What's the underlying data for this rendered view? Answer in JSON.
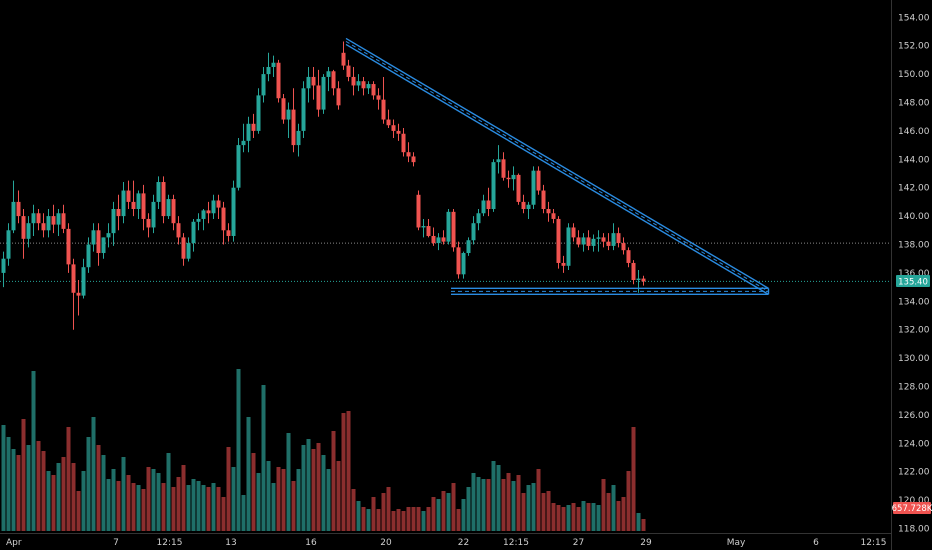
{
  "colors": {
    "background": "#000000",
    "up": "#26a69a",
    "down": "#ef5350",
    "volume_up": "#1f6f68",
    "volume_down": "#8b2e2e",
    "pattern": "#2a8be0",
    "axis_text": "#cfcfcf",
    "price_line": "#26a69a",
    "price_tag_bg": "#26a69a",
    "volume_tag_bg": "#ef5350",
    "resistance_line": "#888888"
  },
  "chart_data": {
    "type": "candlestick",
    "y_axis": {
      "min": 118,
      "max": 155,
      "tick_labels": [
        "154.00",
        "152.00",
        "150.00",
        "148.00",
        "146.00",
        "144.00",
        "142.00",
        "140.00",
        "138.00",
        "136.00",
        "134.00",
        "132.00",
        "130.00",
        "128.00",
        "126.00",
        "124.00",
        "122.00",
        "120.00",
        "118.00"
      ],
      "tick_values": [
        154,
        152,
        150,
        148,
        146,
        144,
        142,
        140,
        138,
        136,
        134,
        132,
        130,
        128,
        126,
        124,
        122,
        120,
        118
      ]
    },
    "x_axis": {
      "labels": [
        "Apr",
        "7",
        "12:15",
        "13",
        "16",
        "20",
        "22",
        "12:15",
        "27",
        "29",
        "May",
        "6",
        "12:15"
      ],
      "label_positions": [
        0.5,
        22.5,
        33.2,
        45.5,
        61.5,
        76.5,
        92,
        102.5,
        115,
        128.5,
        146.5,
        162.5,
        174
      ]
    },
    "last_price": 135.4,
    "last_price_label": "135.40",
    "last_volume_label": "657.728K",
    "horizontal_level": 138.1,
    "triangle_pattern": {
      "upper_start": {
        "i": 68.5,
        "price": 152.3
      },
      "apex": {
        "i": 153,
        "price": 134.7
      },
      "base_start": {
        "i": 89.5,
        "price": 134.7
      }
    },
    "candles": [
      [
        136,
        137.5,
        135,
        137
      ],
      [
        137,
        139.5,
        136.5,
        139
      ],
      [
        139,
        142.5,
        138.8,
        141
      ],
      [
        141,
        141.8,
        139.5,
        140
      ],
      [
        140,
        140.5,
        137,
        138.4
      ],
      [
        138.4,
        140,
        137.8,
        139.5
      ],
      [
        139.5,
        140.8,
        138.6,
        140.2
      ],
      [
        140.2,
        140.5,
        139,
        139.5
      ],
      [
        139.5,
        140.2,
        138.5,
        139
      ],
      [
        139,
        140.5,
        138.5,
        140
      ],
      [
        140,
        140.8,
        138.8,
        139.4
      ],
      [
        139.4,
        140.5,
        138.6,
        140.2
      ],
      [
        140.2,
        140.8,
        138.8,
        139.1
      ],
      [
        139.1,
        139.5,
        136,
        136.6
      ],
      [
        136.6,
        137,
        132,
        134.6
      ],
      [
        134.6,
        135.5,
        133,
        134.4
      ],
      [
        134.4,
        137,
        134.2,
        136.4
      ],
      [
        136.4,
        138.5,
        136,
        138
      ],
      [
        138,
        139.5,
        137.5,
        139
      ],
      [
        139,
        139.5,
        136.5,
        137.4
      ],
      [
        137.4,
        138.5,
        137,
        138.5
      ],
      [
        138.5,
        139.5,
        137.8,
        138.8
      ],
      [
        138.8,
        141,
        137.9,
        140.5
      ],
      [
        140.5,
        141.5,
        139,
        140
      ],
      [
        140,
        142.4,
        139.5,
        141.8
      ],
      [
        141.8,
        142.5,
        140.5,
        141
      ],
      [
        141,
        142.5,
        140,
        140.5
      ],
      [
        140.5,
        141.8,
        139.8,
        141.6
      ],
      [
        141.6,
        142.2,
        139,
        139.8
      ],
      [
        139.8,
        140.2,
        138.5,
        139.2
      ],
      [
        139.2,
        141.5,
        138.8,
        141
      ],
      [
        141,
        142.8,
        140.5,
        142.4
      ],
      [
        142.4,
        142.8,
        139.5,
        140
      ],
      [
        140,
        141.5,
        139.8,
        141.2
      ],
      [
        141.2,
        141.5,
        139,
        139.5
      ],
      [
        139.5,
        140,
        138,
        138.5
      ],
      [
        138.5,
        138.8,
        136.5,
        137
      ],
      [
        137,
        138.5,
        136.8,
        138.1
      ],
      [
        138.1,
        139.8,
        137.5,
        139.6
      ],
      [
        139.6,
        140.2,
        139,
        139.8
      ],
      [
        139.8,
        140.5,
        139,
        140.4
      ],
      [
        140.4,
        141,
        139.5,
        140.2
      ],
      [
        140.2,
        141.5,
        139.8,
        141.1
      ],
      [
        141.1,
        141.5,
        139.8,
        140.6
      ],
      [
        140.6,
        141,
        138,
        139
      ],
      [
        139,
        139.5,
        138.2,
        138.6
      ],
      [
        138.6,
        142.5,
        138.2,
        142
      ],
      [
        142,
        145.5,
        141.8,
        145
      ],
      [
        145,
        146.5,
        144.5,
        145.3
      ],
      [
        145.3,
        147,
        144.5,
        146.5
      ],
      [
        146.5,
        147.2,
        145.5,
        146
      ],
      [
        146,
        149,
        145.8,
        148.5
      ],
      [
        148.5,
        150.5,
        148,
        150
      ],
      [
        150,
        151.5,
        149.5,
        150.5
      ],
      [
        150.5,
        151.3,
        149.8,
        150.8
      ],
      [
        150.8,
        151,
        148,
        148.3
      ],
      [
        148.3,
        148.6,
        146.5,
        146.8
      ],
      [
        146.8,
        148,
        145.5,
        147.5
      ],
      [
        147.5,
        149,
        144.5,
        145
      ],
      [
        145,
        146.5,
        144.2,
        146
      ],
      [
        146,
        149.5,
        145.5,
        149
      ],
      [
        149,
        150.5,
        148,
        149.8
      ],
      [
        149.8,
        150.5,
        148.2,
        149.2
      ],
      [
        149.2,
        150.3,
        147,
        147.5
      ],
      [
        147.5,
        150,
        147.2,
        149.8
      ],
      [
        149.8,
        150.5,
        148.8,
        150.2
      ],
      [
        150.2,
        150.3,
        148.5,
        149
      ],
      [
        149,
        149.5,
        147.5,
        147.8
      ],
      [
        151.5,
        152.3,
        150.3,
        150.6
      ],
      [
        150.6,
        151,
        149.5,
        149.8
      ],
      [
        149.8,
        150.5,
        148.5,
        149.2
      ],
      [
        149.2,
        150,
        148.8,
        149.5
      ],
      [
        149.5,
        149.8,
        148.5,
        149
      ],
      [
        149,
        149.5,
        148.6,
        149.3
      ],
      [
        149.3,
        149.5,
        148.2,
        148.5
      ],
      [
        148.5,
        149,
        147.5,
        148.2
      ],
      [
        148.2,
        149.8,
        146.5,
        146.8
      ],
      [
        146.8,
        147.5,
        146.2,
        146.4
      ],
      [
        146.4,
        146.8,
        145.5,
        146
      ],
      [
        146,
        146.5,
        145.3,
        145.8
      ],
      [
        145.8,
        146.2,
        144.2,
        144.5
      ],
      [
        144.5,
        145.2,
        143.8,
        144.2
      ],
      [
        144.2,
        144.5,
        143.5,
        143.8
      ],
      [
        141.5,
        141.8,
        139,
        139.2
      ],
      [
        139.2,
        139.8,
        138.5,
        139.3
      ],
      [
        139.3,
        139.8,
        138.5,
        138.6
      ],
      [
        138.6,
        139.2,
        137.9,
        138.1
      ],
      [
        138.1,
        138.8,
        137.6,
        138.5
      ],
      [
        138.5,
        139,
        138,
        138.2
      ],
      [
        138.2,
        140.5,
        138,
        140.3
      ],
      [
        140.3,
        140.5,
        137.5,
        137.8
      ],
      [
        137.8,
        138.2,
        135.6,
        135.9
      ],
      [
        135.9,
        137.5,
        135.6,
        137.4
      ],
      [
        137.4,
        138.5,
        137.2,
        138.3
      ],
      [
        138.3,
        140,
        138,
        139.5
      ],
      [
        139.5,
        140.5,
        139,
        140.2
      ],
      [
        140.2,
        141.5,
        140,
        141.1
      ],
      [
        141.1,
        142,
        140,
        140.5
      ],
      [
        140.5,
        144,
        140.3,
        143.8
      ],
      [
        143.8,
        145,
        143,
        144
      ],
      [
        144,
        144.5,
        142.5,
        142.7
      ],
      [
        142.7,
        143.2,
        142,
        142.6
      ],
      [
        142.6,
        143.5,
        141.8,
        142.9
      ],
      [
        142.9,
        143,
        140.8,
        141
      ],
      [
        141,
        141.5,
        140.2,
        140.5
      ],
      [
        140.5,
        141,
        139.8,
        140.8
      ],
      [
        140.8,
        143.5,
        140.5,
        143.2
      ],
      [
        143.2,
        143.5,
        141.5,
        141.8
      ],
      [
        141.8,
        142.2,
        140.2,
        140.5
      ],
      [
        140.5,
        141,
        139.6,
        140.2
      ],
      [
        140.2,
        140.5,
        139.5,
        139.8
      ],
      [
        139.8,
        140,
        136.3,
        136.7
      ],
      [
        136.7,
        137.2,
        136,
        136.5
      ],
      [
        136.5,
        139.5,
        136.2,
        139.2
      ],
      [
        139.2,
        139.5,
        138.2,
        138.5
      ],
      [
        138.5,
        139,
        137.8,
        138
      ],
      [
        138,
        138.8,
        137.5,
        138.5
      ],
      [
        138.5,
        139,
        137.6,
        137.9
      ],
      [
        137.9,
        138.7,
        137.5,
        138.4
      ],
      [
        138.4,
        139,
        137.5,
        138.5
      ],
      [
        138.5,
        138.8,
        137.8,
        138.2
      ],
      [
        138.2,
        138.8,
        137.6,
        137.9
      ],
      [
        137.9,
        139.5,
        137.6,
        138.8
      ],
      [
        138.8,
        139.2,
        137.8,
        138.1
      ],
      [
        138.1,
        138.5,
        137.3,
        137.6
      ],
      [
        137.6,
        137.8,
        136.4,
        136.7
      ],
      [
        136.7,
        136.9,
        135.2,
        135.5
      ],
      [
        135.5,
        136.2,
        134.6,
        135.6
      ],
      [
        135.6,
        135.8,
        135.1,
        135.4
      ]
    ],
    "volumes": [
      0.53,
      0.47,
      0.41,
      0.38,
      0.56,
      0.43,
      0.8,
      0.45,
      0.4,
      0.3,
      0.28,
      0.34,
      0.37,
      0.52,
      0.34,
      0.2,
      0.3,
      0.47,
      0.57,
      0.43,
      0.38,
      0.26,
      0.31,
      0.25,
      0.37,
      0.28,
      0.24,
      0.23,
      0.21,
      0.32,
      0.31,
      0.29,
      0.24,
      0.39,
      0.22,
      0.27,
      0.33,
      0.23,
      0.26,
      0.25,
      0.23,
      0.22,
      0.24,
      0.22,
      0.17,
      0.42,
      0.32,
      0.81,
      0.18,
      0.57,
      0.39,
      0.29,
      0.73,
      0.35,
      0.24,
      0.32,
      0.31,
      0.49,
      0.25,
      0.31,
      0.43,
      0.46,
      0.41,
      0.44,
      0.38,
      0.31,
      0.5,
      0.35,
      0.59,
      0.6,
      0.21,
      0.15,
      0.12,
      0.11,
      0.17,
      0.11,
      0.19,
      0.22,
      0.1,
      0.11,
      0.1,
      0.12,
      0.12,
      0.12,
      0.1,
      0.12,
      0.17,
      0.16,
      0.2,
      0.19,
      0.24,
      0.11,
      0.16,
      0.22,
      0.29,
      0.27,
      0.26,
      0.26,
      0.35,
      0.33,
      0.26,
      0.29,
      0.25,
      0.28,
      0.19,
      0.23,
      0.24,
      0.31,
      0.19,
      0.2,
      0.14,
      0.13,
      0.12,
      0.13,
      0.14,
      0.12,
      0.15,
      0.14,
      0.14,
      0.13,
      0.26,
      0.19,
      0.23,
      0.15,
      0.17,
      0.3,
      0.52,
      0.09,
      0.06
    ]
  }
}
